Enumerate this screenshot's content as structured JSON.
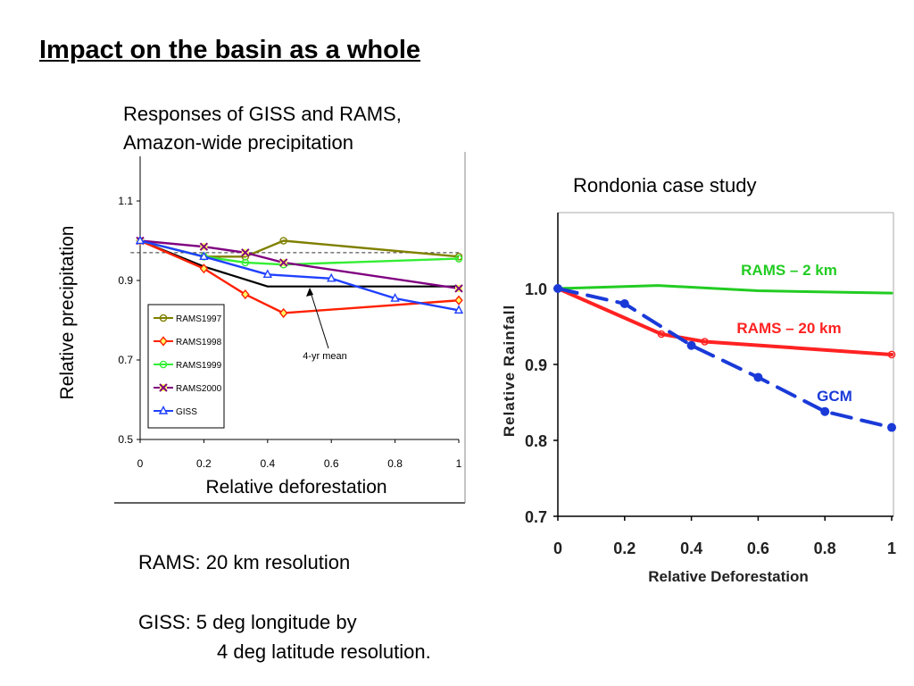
{
  "slide": {
    "title": "Impact on the basin as a whole",
    "left_caption_line1": "Responses of GISS and RAMS,",
    "left_caption_line2": "Amazon-wide precipitation",
    "right_caption": "Rondonia case study",
    "notes": [
      "RAMS: 20 km resolution",
      "GISS: 5 deg longitude by",
      "4 deg latitude resolution."
    ]
  },
  "chart_data": [
    {
      "type": "line",
      "xlabel": "Relative deforestation",
      "ylabel": "Relative precipitation",
      "xlim": [
        0,
        1
      ],
      "ylim": [
        0.5,
        1.15
      ],
      "xticks": [
        "0",
        "0.2",
        "0.4",
        "0.6",
        "0.8",
        "1"
      ],
      "yticks": [
        "0.5",
        "0.7",
        "0.9",
        "1.1"
      ],
      "legend": "bottom-left",
      "annotation": "4-yr mean",
      "series": [
        {
          "name": "RAMS1997",
          "color": "#808000",
          "marker": "circle",
          "x": [
            0,
            0.2,
            0.33,
            0.45,
            1
          ],
          "y": [
            1.0,
            0.96,
            0.96,
            1.0,
            0.96
          ]
        },
        {
          "name": "RAMS1998",
          "color": "#ff2000",
          "marker": "diamond",
          "x": [
            0,
            0.2,
            0.33,
            0.45,
            1
          ],
          "y": [
            1.0,
            0.93,
            0.865,
            0.818,
            0.85
          ]
        },
        {
          "name": "RAMS1999",
          "color": "#33ee33",
          "marker": "circle",
          "x": [
            0,
            0.2,
            0.33,
            0.45,
            1
          ],
          "y": [
            1.0,
            0.96,
            0.945,
            0.94,
            0.955
          ]
        },
        {
          "name": "RAMS2000",
          "color": "#800080",
          "marker": "x",
          "x": [
            0,
            0.2,
            0.33,
            0.45,
            1
          ],
          "y": [
            1.0,
            0.985,
            0.97,
            0.945,
            0.88
          ]
        },
        {
          "name": "GISS",
          "color": "#2040ff",
          "marker": "triangle",
          "x": [
            0,
            0.2,
            0.4,
            0.6,
            0.8,
            1
          ],
          "y": [
            1.0,
            0.96,
            0.915,
            0.905,
            0.855,
            0.825
          ]
        },
        {
          "name": "",
          "color": "#000000",
          "marker": "none",
          "role": "4-yr mean",
          "x": [
            0,
            0.2,
            0.4,
            0.6,
            0.8,
            1
          ],
          "y": [
            1.0,
            0.935,
            0.885,
            0.885,
            0.885,
            0.885
          ]
        },
        {
          "name": "",
          "color": "#333333",
          "marker": "none",
          "dashed": true,
          "x": [
            -0.03,
            1
          ],
          "y": [
            0.97,
            0.97
          ]
        }
      ]
    },
    {
      "type": "line",
      "xlabel": "Relative Deforestation",
      "ylabel": "Relative Rainfall",
      "xlim": [
        0,
        1
      ],
      "ylim": [
        0.7,
        1.1
      ],
      "xticks": [
        "0",
        "0.2",
        "0.4",
        "0.6",
        "0.8",
        "1"
      ],
      "yticks": [
        "0.7",
        "0.8",
        "0.9",
        "1.0"
      ],
      "series": [
        {
          "name": "RAMS – 2 km",
          "color": "#22cc22",
          "marker": "none",
          "x": [
            0,
            0.3,
            0.6,
            1
          ],
          "y": [
            1.0,
            1.004,
            0.997,
            0.994
          ]
        },
        {
          "name": "RAMS – 20 km",
          "color": "#ff2222",
          "marker": "circle",
          "x": [
            0,
            0.31,
            0.44,
            1
          ],
          "y": [
            1.0,
            0.94,
            0.93,
            0.913
          ]
        },
        {
          "name": "GCM",
          "color": "#1a3ad8",
          "marker": "dot",
          "dashed": true,
          "x": [
            0,
            0.2,
            0.4,
            0.6,
            0.8,
            1
          ],
          "y": [
            1.0,
            0.98,
            0.925,
            0.883,
            0.838,
            0.817
          ]
        }
      ]
    }
  ]
}
